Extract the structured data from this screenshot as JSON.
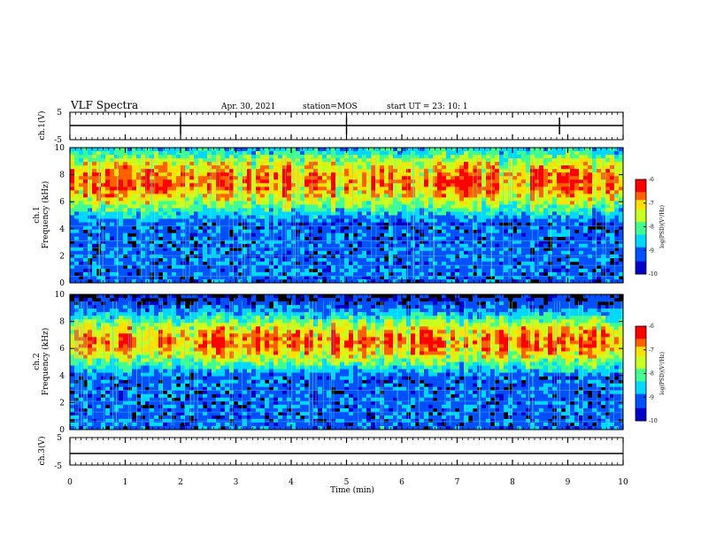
{
  "header": {
    "title": "VLF Spectra",
    "date": "Apr. 30, 2021",
    "station": "station=MOS",
    "start": "start  UT  =    23: 10: 1"
  },
  "colors": {
    "scale": [
      "#000000",
      "#00007f",
      "#0000ff",
      "#007fff",
      "#00ffff",
      "#7fff7f",
      "#ffff00",
      "#ff7f00",
      "#ff0000",
      "#ffffff"
    ]
  },
  "chart_data": [
    {
      "type": "line",
      "panel": "ch1-voltage",
      "ylabel": "ch.1(V)",
      "ylim": [
        -5,
        5
      ],
      "yticks": [
        "5",
        "-5"
      ],
      "x": [
        0,
        10
      ],
      "y": [
        0,
        0
      ]
    },
    {
      "type": "heatmap",
      "panel": "ch1-spectrogram",
      "ylabel": "ch.1\nFrequency (kHz)",
      "ylim": [
        0,
        10
      ],
      "yticks": [
        "0",
        "2",
        "4",
        "6",
        "8",
        "10"
      ],
      "band_center_khz": 7.5,
      "colorbar": {
        "label": "log(PSD)(V²/Hz)",
        "range": [
          -10,
          -6
        ],
        "ticks": [
          "-6",
          "-7",
          "-8",
          "-9",
          "-10"
        ]
      }
    },
    {
      "type": "heatmap",
      "panel": "ch2-spectrogram",
      "ylabel": "ch.2\nFrequency (kHz)",
      "ylim": [
        0,
        10
      ],
      "yticks": [
        "0",
        "2",
        "4",
        "6",
        "8",
        "10"
      ],
      "band_center_khz": 6.5,
      "colorbar": {
        "label": "log(PSD)(V²/Hz)",
        "range": [
          -10,
          -6
        ],
        "ticks": [
          "-6",
          "-7",
          "-8",
          "-9",
          "-10"
        ]
      }
    },
    {
      "type": "line",
      "panel": "ch3-voltage",
      "ylabel": "ch.3(V)",
      "ylim": [
        -5,
        5
      ],
      "yticks": [
        "5",
        "-5"
      ],
      "x": [
        0,
        10
      ],
      "y": [
        -1.5,
        -1.5
      ]
    }
  ],
  "xaxis": {
    "label": "Time  (min)",
    "xlim": [
      0,
      10
    ],
    "ticks": [
      "0",
      "1",
      "2",
      "3",
      "4",
      "5",
      "6",
      "7",
      "8",
      "9",
      "10"
    ]
  }
}
